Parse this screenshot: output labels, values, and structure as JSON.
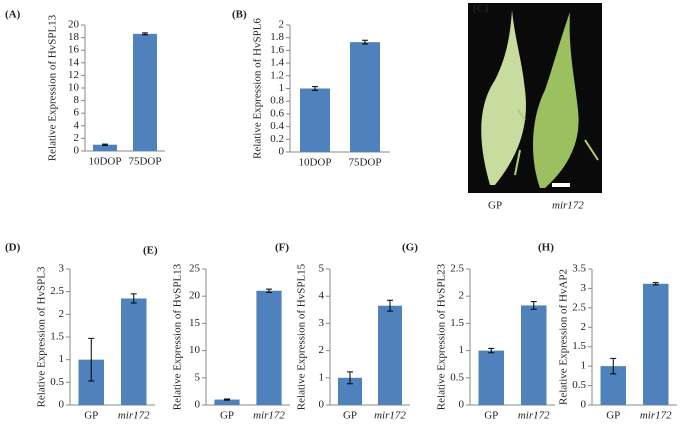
{
  "chart_data": [
    {
      "type": "bar",
      "panel_label": "(A)",
      "y_label": "Relative Expression of HvSPL13",
      "categories": [
        "10DOP",
        "75DOP"
      ],
      "values": [
        1.0,
        18.6
      ],
      "errors": [
        0.1,
        0.15
      ],
      "color": "#4f81bd",
      "ylim": [
        0,
        20
      ],
      "yticks": [
        0,
        2,
        4,
        6,
        8,
        10,
        12,
        14,
        16,
        18,
        20
      ]
    },
    {
      "type": "bar",
      "panel_label": "(B)",
      "y_label": "Relative Expression of HvSPL6",
      "categories": [
        "10DOP",
        "75DOP"
      ],
      "values": [
        1.0,
        1.73
      ],
      "errors": [
        0.03,
        0.03
      ],
      "color": "#4f81bd",
      "ylim": [
        0,
        2
      ],
      "yticks": [
        0,
        0.2,
        0.4,
        0.6,
        0.8,
        1,
        1.2,
        1.4,
        1.6,
        1.8,
        2
      ]
    },
    {
      "type": "bar",
      "panel_label": "(D)",
      "y_label": "Relative Expression of HvSPL3",
      "categories": [
        "GP",
        "mir172"
      ],
      "values": [
        1.0,
        2.35
      ],
      "errors": [
        0.47,
        0.1
      ],
      "color": "#4f81bd",
      "ylim": [
        0,
        3
      ],
      "yticks": [
        0,
        0.5,
        1,
        1.5,
        2,
        2.5,
        3
      ]
    },
    {
      "type": "bar",
      "panel_label": "(E)",
      "y_label": "Relative Expression of HvSPL13",
      "categories": [
        "GP",
        "mir172"
      ],
      "values": [
        1.0,
        21.0
      ],
      "errors": [
        0.1,
        0.3
      ],
      "color": "#4f81bd",
      "ylim": [
        0,
        25
      ],
      "yticks": [
        0,
        5,
        10,
        15,
        20,
        25
      ]
    },
    {
      "type": "bar",
      "panel_label": "(F)",
      "y_label": "Relative Expression of HvSPL15",
      "categories": [
        "GP",
        "mir172"
      ],
      "values": [
        1.0,
        3.65
      ],
      "errors": [
        0.22,
        0.2
      ],
      "color": "#4f81bd",
      "ylim": [
        0,
        5
      ],
      "yticks": [
        0,
        1,
        2,
        3,
        4,
        5
      ]
    },
    {
      "type": "bar",
      "panel_label": "(G)",
      "y_label": "Relative Expression of HvSPL23",
      "categories": [
        "GP",
        "mir172"
      ],
      "values": [
        1.0,
        1.83
      ],
      "errors": [
        0.04,
        0.07
      ],
      "color": "#4f81bd",
      "ylim": [
        0,
        2.5
      ],
      "yticks": [
        0,
        0.5,
        1,
        1.5,
        2,
        2.5
      ]
    },
    {
      "type": "bar",
      "panel_label": "(H)",
      "y_label": "Relative Expression of HvAP2",
      "categories": [
        "GP",
        "mir172"
      ],
      "values": [
        1.0,
        3.12
      ],
      "errors": [
        0.2,
        0.03
      ],
      "color": "#4f81bd",
      "ylim": [
        0,
        3.5
      ],
      "yticks": [
        0,
        0.5,
        1,
        1.5,
        2,
        2.5,
        3,
        3.5
      ]
    }
  ],
  "photo": {
    "panel_label": "(C)",
    "captions": [
      "GP",
      "mir172"
    ]
  }
}
